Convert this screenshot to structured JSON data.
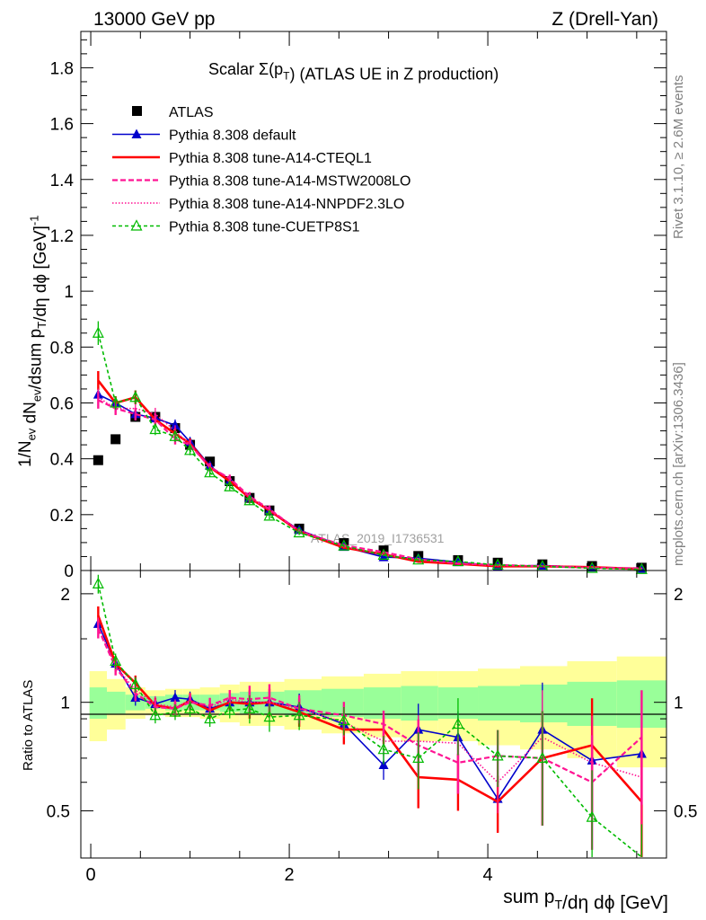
{
  "header": {
    "energy": "13000 GeV pp",
    "process": "Z (Drell-Yan)",
    "rivet": "Rivet 3.1.10, ≥ 2.6M events",
    "mcplots": "mcplots.cern.ch [arXiv:1306.3436]",
    "watermark": "ATLAS_2019_I1736531"
  },
  "chart_data": [
    {
      "type": "line",
      "title": "Scalar Σ(p_T) (ATLAS UE in Z production)",
      "xlabel": "sum p_T/dη dϕ [GeV]",
      "ylabel": "1/N_ev dN_ev/dsum p_T/dη dϕ [GeV]^-1",
      "xlim": [
        -0.1,
        5.8
      ],
      "ylim": [
        0,
        1.93
      ],
      "yticks": [
        "0",
        "0.2",
        "0.4",
        "0.6",
        "0.8",
        "1",
        "1.2",
        "1.4",
        "1.6",
        "1.8"
      ],
      "xticks": [
        "0",
        "2",
        "4"
      ],
      "legend_position": "top-left",
      "x": [
        0.075,
        0.25,
        0.45,
        0.65,
        0.85,
        1.0,
        1.2,
        1.4,
        1.6,
        1.8,
        2.1,
        2.55,
        2.95,
        3.3,
        3.7,
        4.1,
        4.55,
        5.05,
        5.55
      ],
      "series": [
        {
          "name": "ATLAS",
          "color": "#000000",
          "marker": "square",
          "values": [
            0.395,
            0.47,
            0.55,
            0.55,
            0.51,
            0.45,
            0.39,
            0.32,
            0.26,
            0.215,
            0.15,
            0.098,
            0.072,
            0.052,
            0.037,
            0.028,
            0.022,
            0.016,
            0.01
          ]
        },
        {
          "name": "Pythia 8.308 default",
          "color": "#0000cc",
          "marker": "triangle",
          "dash": "",
          "values": [
            0.63,
            0.6,
            0.56,
            0.545,
            0.52,
            0.46,
            0.375,
            0.32,
            0.26,
            0.215,
            0.145,
            0.085,
            0.048,
            0.044,
            0.03,
            0.015,
            0.018,
            0.011,
            0.007
          ]
        },
        {
          "name": "Pythia 8.308 tune-A14-CTEQL1",
          "color": "#ff0000",
          "marker": "none",
          "dash": "",
          "values": [
            0.68,
            0.6,
            0.62,
            0.54,
            0.49,
            0.455,
            0.37,
            0.32,
            0.26,
            0.215,
            0.14,
            0.082,
            0.058,
            0.032,
            0.024,
            0.015,
            0.015,
            0.012,
            0.0055
          ]
        },
        {
          "name": "Pythia 8.308 tune-A14-MSTW2008LO",
          "color": "#ff1493",
          "marker": "none",
          "dash": "6,3",
          "values": [
            0.61,
            0.58,
            0.56,
            0.54,
            0.47,
            0.45,
            0.37,
            0.33,
            0.265,
            0.22,
            0.14,
            0.09,
            0.066,
            0.04,
            0.025,
            0.02,
            0.015,
            0.01,
            0.008
          ]
        },
        {
          "name": "Pythia 8.308 tune-A14-NNPDF2.3LO",
          "color": "#ff1493",
          "marker": "none",
          "dash": "1.5,2",
          "values": [
            0.62,
            0.58,
            0.58,
            0.56,
            0.5,
            0.45,
            0.37,
            0.33,
            0.26,
            0.215,
            0.145,
            0.086,
            0.056,
            0.04,
            0.026,
            0.017,
            0.017,
            0.011,
            0.0065
          ]
        },
        {
          "name": "Pythia 8.308 tune-CUETP8S1",
          "color": "#00bb00",
          "marker": "open-triangle",
          "dash": "4,3",
          "values": [
            0.85,
            0.6,
            0.62,
            0.505,
            0.48,
            0.43,
            0.35,
            0.3,
            0.25,
            0.195,
            0.135,
            0.088,
            0.055,
            0.038,
            0.032,
            0.02,
            0.015,
            0.008,
            0.004
          ]
        }
      ]
    },
    {
      "type": "line",
      "ylabel": "Ratio to ATLAS",
      "xlim": [
        -0.1,
        5.8
      ],
      "ylim": [
        0.37,
        2.32
      ],
      "yticks": [
        "0.5",
        "1",
        "2"
      ],
      "x": [
        0.075,
        0.25,
        0.45,
        0.65,
        0.85,
        1.0,
        1.2,
        1.4,
        1.6,
        1.8,
        2.1,
        2.55,
        2.95,
        3.3,
        3.7,
        4.1,
        4.55,
        5.05,
        5.55
      ],
      "series": [
        {
          "name": "Pythia 8.308 default",
          "values": [
            1.65,
            1.28,
            1.03,
            0.99,
            1.03,
            1.02,
            0.96,
            1.0,
            1.0,
            1.0,
            0.97,
            0.87,
            0.67,
            0.84,
            0.8,
            0.54,
            0.84,
            0.69,
            0.72
          ]
        },
        {
          "name": "Pythia 8.308 tune-A14-CTEQL1",
          "values": [
            1.74,
            1.28,
            1.13,
            0.98,
            0.96,
            1.01,
            0.95,
            1.0,
            0.99,
            1.0,
            0.94,
            0.84,
            0.84,
            0.62,
            0.61,
            0.53,
            0.7,
            0.76,
            0.53
          ]
        },
        {
          "name": "Pythia 8.308 tune-A14-MSTW2008LO",
          "values": [
            1.6,
            1.25,
            1.06,
            0.97,
            0.96,
            1.0,
            0.98,
            1.03,
            1.02,
            1.03,
            0.96,
            0.92,
            0.87,
            0.76,
            0.68,
            0.71,
            0.7,
            0.6,
            0.8
          ]
        },
        {
          "name": "Pythia 8.308 tune-A14-NNPDF2.3LO",
          "values": [
            1.62,
            1.26,
            1.08,
            0.99,
            0.97,
            1.01,
            0.97,
            1.02,
            1.0,
            1.0,
            0.96,
            0.88,
            0.78,
            0.78,
            0.77,
            0.6,
            0.8,
            0.68,
            0.62
          ]
        },
        {
          "name": "Pythia 8.308 tune-CUETP8S1",
          "values": [
            2.13,
            1.3,
            1.12,
            0.92,
            0.94,
            0.96,
            0.9,
            0.95,
            0.96,
            0.91,
            0.92,
            0.89,
            0.74,
            0.7,
            0.87,
            0.71,
            0.7,
            0.48,
            0.34
          ]
        }
      ],
      "bands": {
        "inner_color": "#99ff99",
        "outer_color": "#ffff99",
        "inner": [
          0.1,
          0.07,
          0.05,
          0.04,
          0.05,
          0.05,
          0.05,
          0.06,
          0.07,
          0.07,
          0.08,
          0.09,
          0.1,
          0.11,
          0.1,
          0.11,
          0.12,
          0.14,
          0.15
        ],
        "outer": [
          0.22,
          0.16,
          0.1,
          0.08,
          0.09,
          0.09,
          0.1,
          0.12,
          0.14,
          0.14,
          0.16,
          0.18,
          0.2,
          0.22,
          0.22,
          0.24,
          0.26,
          0.3,
          0.34
        ]
      }
    }
  ]
}
